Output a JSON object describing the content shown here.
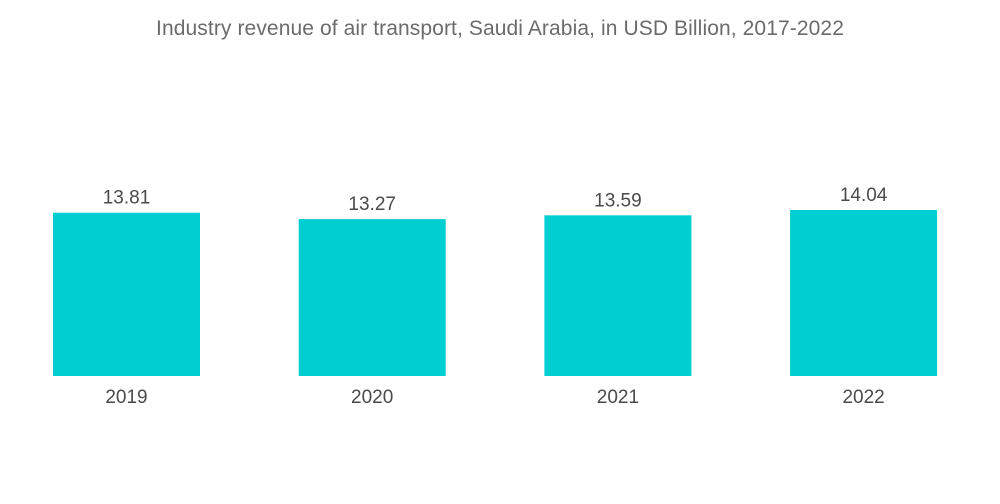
{
  "chart_data": {
    "type": "bar",
    "title": "Industry revenue of air transport, Saudi Arabia, in USD Billion, 2017-2022",
    "categories": [
      "2019",
      "2020",
      "2021",
      "2022"
    ],
    "values": [
      13.81,
      13.27,
      13.59,
      14.04
    ],
    "value_labels": [
      "13.81",
      "13.27",
      "13.59",
      "14.04"
    ],
    "xlabel": "",
    "ylabel": "",
    "ylim": [
      0,
      14.04
    ],
    "grid": false,
    "legend": "none",
    "colors": {
      "bar": "#00CED1",
      "text": "#4a4a4a",
      "title": "#6b6b6b"
    }
  }
}
